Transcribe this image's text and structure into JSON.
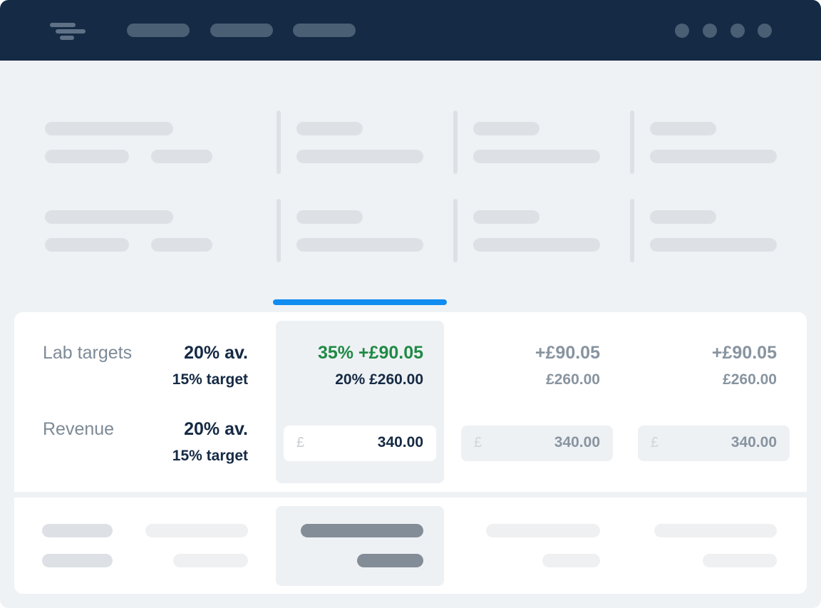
{
  "header": {
    "logo_icon": "menu-lines-logo-icon",
    "colors": {
      "background": "#152a44",
      "placeholder": "#4a5e74"
    }
  },
  "tab_indicator_color": "#118cf0",
  "rows": {
    "lab_targets": {
      "label": "Lab targets",
      "average": "20% av.",
      "target": "15% target"
    },
    "revenue": {
      "label": "Revenue",
      "average": "20% av.",
      "target": "15% target"
    }
  },
  "columns": [
    {
      "selected": true,
      "delta_primary": "35% +£90.05",
      "delta_secondary": "20% £260.00",
      "input_currency": "£",
      "input_value": "340.00",
      "delta_color": "#1f8a45"
    },
    {
      "selected": false,
      "delta_primary": "+£90.05",
      "delta_secondary": "£260.00",
      "input_currency": "£",
      "input_value": "340.00"
    },
    {
      "selected": false,
      "delta_primary": "+£90.05",
      "delta_secondary": "£260.00",
      "input_currency": "£",
      "input_value": "340.00"
    }
  ]
}
